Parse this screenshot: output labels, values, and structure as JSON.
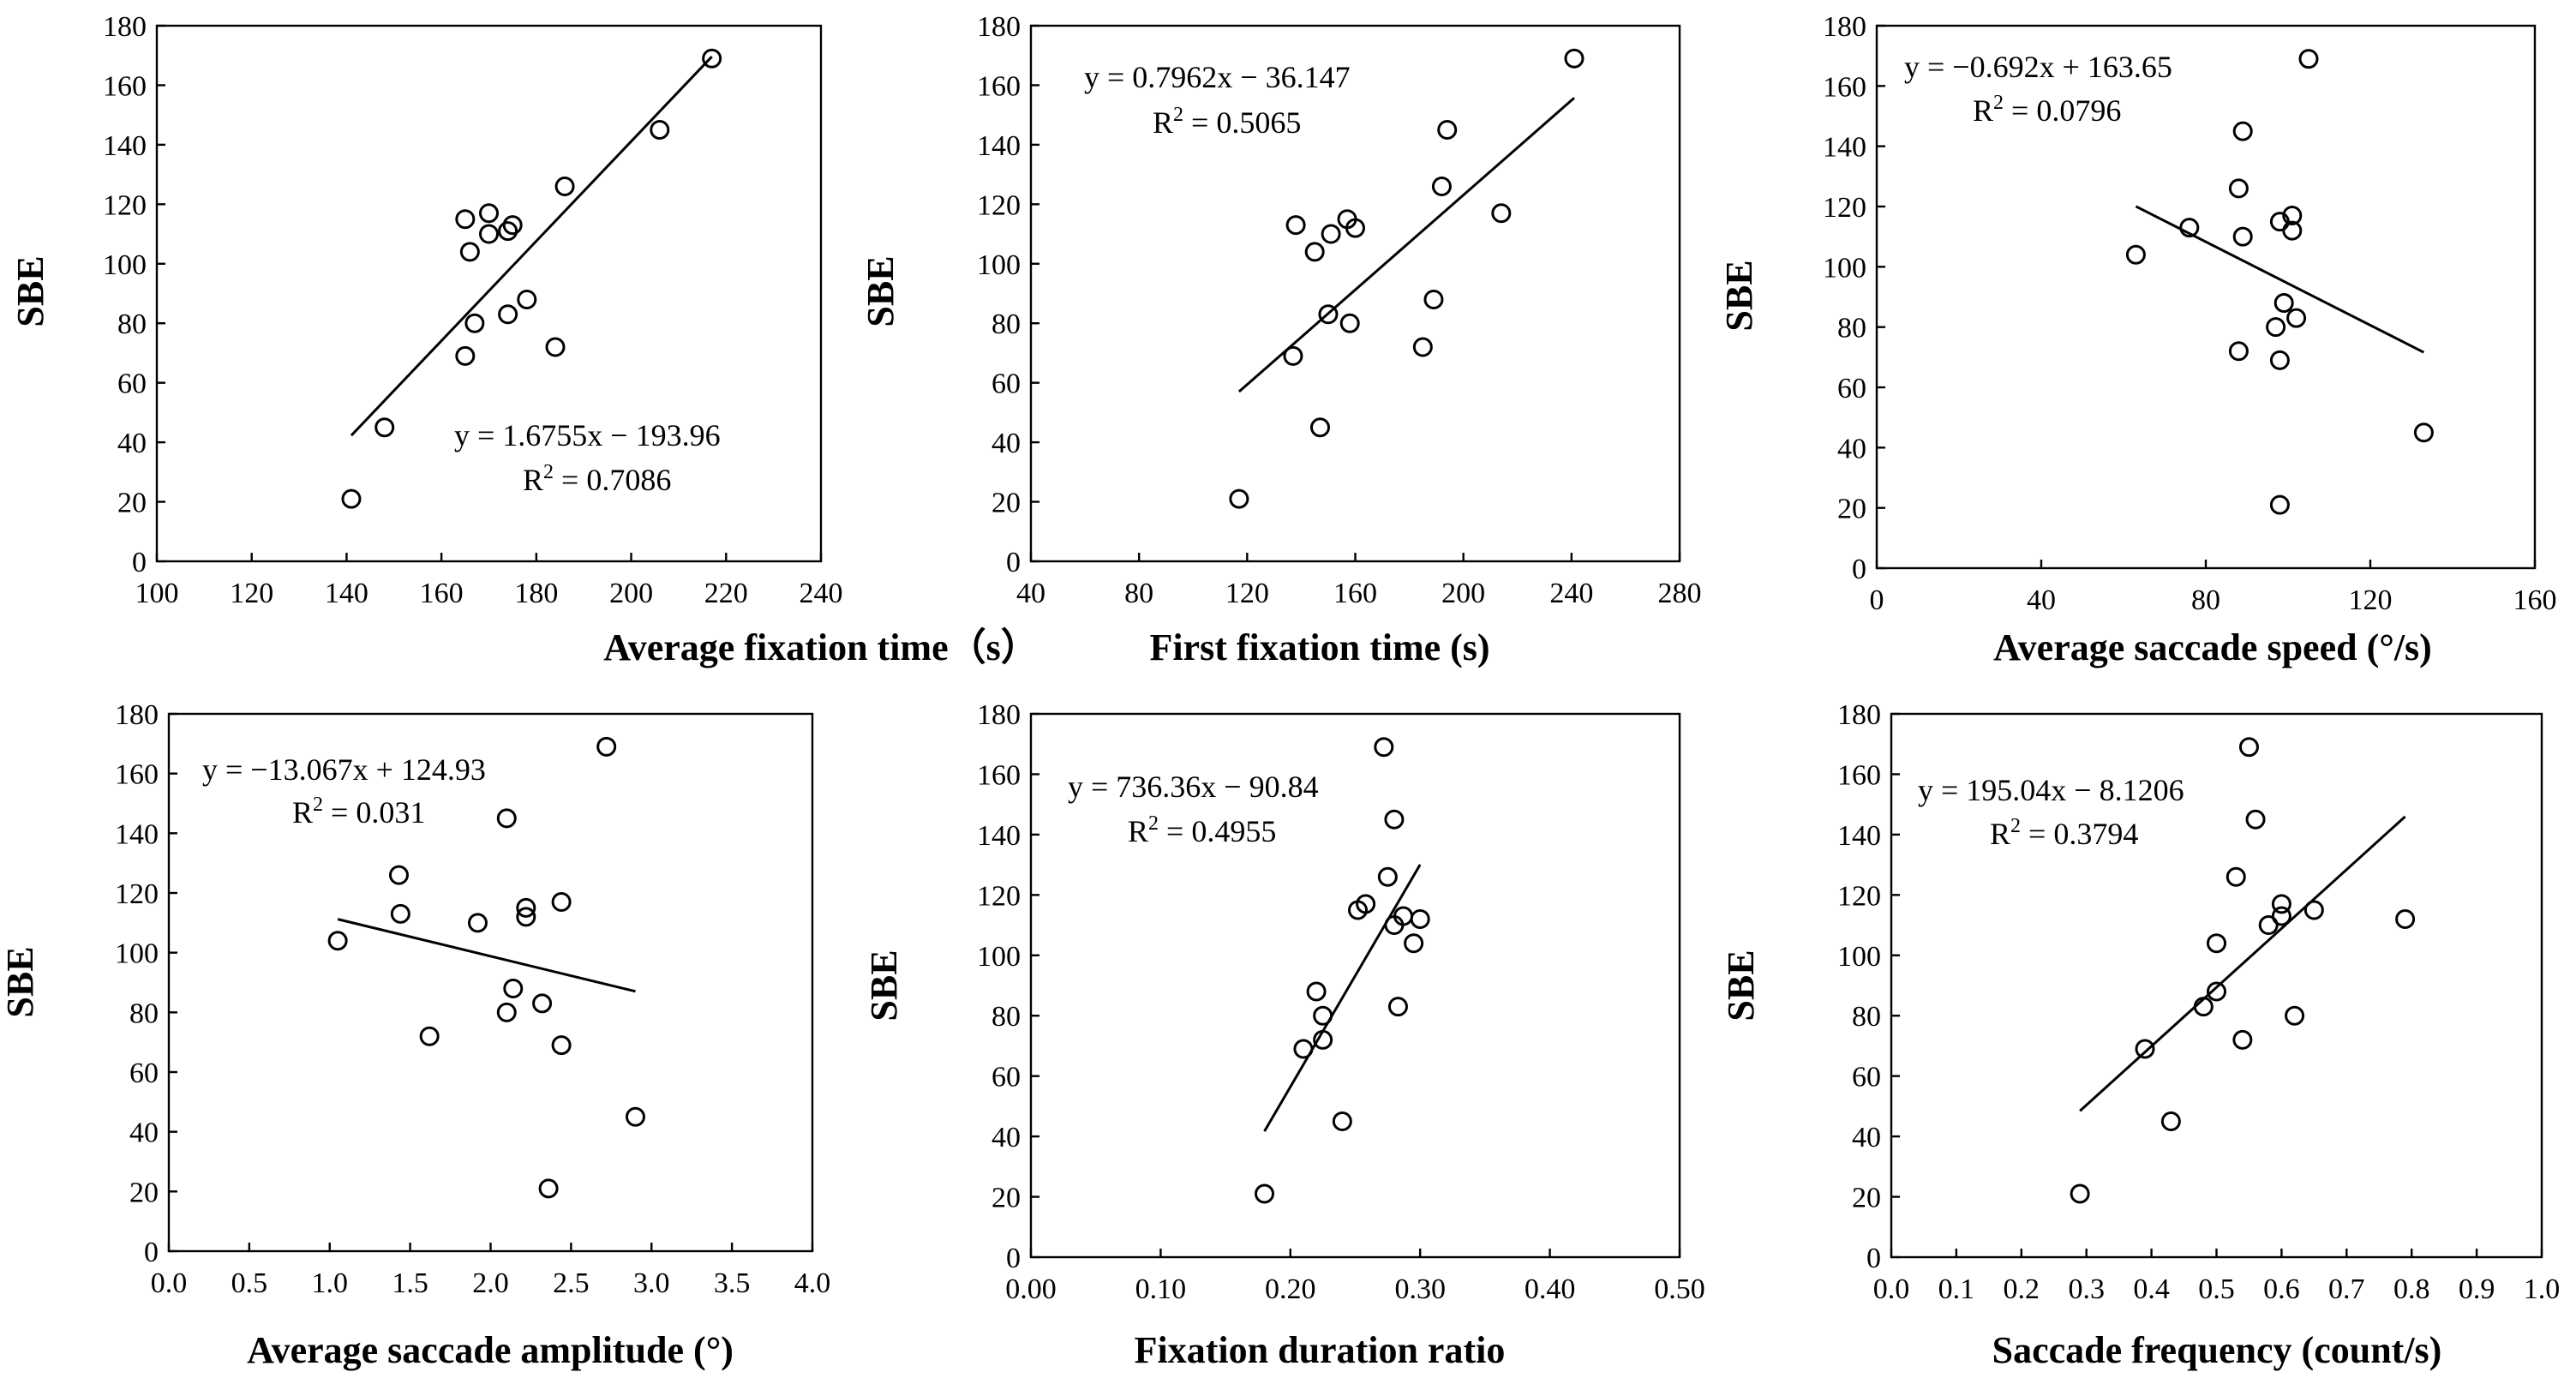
{
  "chart_data": [
    {
      "type": "scatter",
      "xlabel": "Average fixation time（s）",
      "ylabel": "SBE",
      "xlim": [
        100,
        240
      ],
      "ylim": [
        0,
        180
      ],
      "xticks": [
        "100",
        "120",
        "140",
        "160",
        "180",
        "200",
        "220",
        "240"
      ],
      "yticks": [
        "0",
        "20",
        "40",
        "60",
        "80",
        "100",
        "120",
        "140",
        "160",
        "180"
      ],
      "points": [
        [
          141,
          21
        ],
        [
          148,
          45
        ],
        [
          165,
          69
        ],
        [
          167,
          80
        ],
        [
          174,
          83
        ],
        [
          178,
          88
        ],
        [
          184,
          72
        ],
        [
          166,
          104
        ],
        [
          165,
          115
        ],
        [
          170,
          110
        ],
        [
          170,
          117
        ],
        [
          174,
          111
        ],
        [
          175,
          113
        ],
        [
          186,
          126
        ],
        [
          206,
          145
        ],
        [
          217,
          169
        ]
      ],
      "trendline": {
        "x": [
          141,
          217
        ],
        "slope": 1.6755,
        "intercept": -193.96
      },
      "equation": "y = 1.6755x − 193.96",
      "r2_label": "R",
      "r2_value": " = 0.7086"
    },
    {
      "type": "scatter",
      "xlabel": "First fixation time (s)",
      "ylabel": "SBE",
      "xlim": [
        40,
        280
      ],
      "ylim": [
        0,
        180
      ],
      "xticks": [
        "40",
        "80",
        "120",
        "160",
        "200",
        "240",
        "280"
      ],
      "yticks": [
        "0",
        "20",
        "40",
        "60",
        "80",
        "100",
        "120",
        "140",
        "160",
        "180"
      ],
      "points": [
        [
          117,
          21
        ],
        [
          147,
          45
        ],
        [
          137,
          69
        ],
        [
          158,
          80
        ],
        [
          150,
          83
        ],
        [
          189,
          88
        ],
        [
          185,
          72
        ],
        [
          145,
          104
        ],
        [
          151,
          110
        ],
        [
          157,
          115
        ],
        [
          138,
          113
        ],
        [
          160,
          112
        ],
        [
          192,
          126
        ],
        [
          194,
          145
        ],
        [
          214,
          117
        ],
        [
          241,
          169
        ]
      ],
      "trendline": {
        "x": [
          117,
          241
        ],
        "slope": 0.7962,
        "intercept": -36.147
      },
      "equation": "y = 0.7962x − 36.147",
      "r2_label": "R",
      "r2_value": " = 0.5065"
    },
    {
      "type": "scatter",
      "xlabel": "Average saccade speed (°/s)",
      "ylabel": "SBE",
      "xlim": [
        0,
        160
      ],
      "ylim": [
        0,
        180
      ],
      "xticks": [
        "0",
        "40",
        "80",
        "120",
        "160"
      ],
      "yticks": [
        "0",
        "20",
        "40",
        "60",
        "80",
        "100",
        "120",
        "140",
        "160",
        "180"
      ],
      "points": [
        [
          63,
          104
        ],
        [
          76,
          113
        ],
        [
          89,
          145
        ],
        [
          88,
          126
        ],
        [
          89,
          110
        ],
        [
          88,
          72
        ],
        [
          97,
          80
        ],
        [
          98,
          21
        ],
        [
          98,
          69
        ],
        [
          99,
          88
        ],
        [
          98,
          115
        ],
        [
          102,
          83
        ],
        [
          101,
          117
        ],
        [
          101,
          112
        ],
        [
          105,
          169
        ],
        [
          133,
          45
        ]
      ],
      "trendline": {
        "x": [
          63,
          133
        ],
        "slope": -0.692,
        "intercept": 163.65
      },
      "equation": "y = −0.692x + 163.65",
      "r2_label": "R",
      "r2_value": " = 0.0796"
    },
    {
      "type": "scatter",
      "xlabel": "Average saccade amplitude (°)",
      "ylabel": "SBE",
      "xlim": [
        0,
        4.0
      ],
      "ylim": [
        0,
        180
      ],
      "xticks": [
        "0.0",
        "0.5",
        "1.0",
        "1.5",
        "2.0",
        "2.5",
        "3.0",
        "3.5",
        "4.0"
      ],
      "yticks": [
        "0",
        "20",
        "40",
        "60",
        "80",
        "100",
        "120",
        "140",
        "160",
        "180"
      ],
      "points": [
        [
          1.05,
          104
        ],
        [
          1.43,
          126
        ],
        [
          1.44,
          113
        ],
        [
          1.62,
          72
        ],
        [
          1.92,
          110
        ],
        [
          2.1,
          145
        ],
        [
          2.1,
          80
        ],
        [
          2.14,
          88
        ],
        [
          2.22,
          115
        ],
        [
          2.22,
          112
        ],
        [
          2.32,
          83
        ],
        [
          2.36,
          21
        ],
        [
          2.44,
          69
        ],
        [
          2.44,
          117
        ],
        [
          2.72,
          169
        ],
        [
          2.9,
          45
        ]
      ],
      "trendline": {
        "x": [
          1.05,
          2.9
        ],
        "slope": -13.067,
        "intercept": 124.93
      },
      "equation": "y = −13.067x + 124.93",
      "r2_label": "R",
      "r2_value": " = 0.031"
    },
    {
      "type": "scatter",
      "xlabel": "Fixation duration ratio",
      "ylabel": "SBE",
      "xlim": [
        0,
        0.5
      ],
      "ylim": [
        0,
        180
      ],
      "xticks": [
        "0.00",
        "0.10",
        "0.20",
        "0.30",
        "0.40",
        "0.50"
      ],
      "yticks": [
        "0",
        "20",
        "40",
        "60",
        "80",
        "100",
        "120",
        "140",
        "160",
        "180"
      ],
      "points": [
        [
          0.18,
          21
        ],
        [
          0.24,
          45
        ],
        [
          0.21,
          69
        ],
        [
          0.225,
          72
        ],
        [
          0.225,
          80
        ],
        [
          0.22,
          88
        ],
        [
          0.283,
          83
        ],
        [
          0.252,
          115
        ],
        [
          0.258,
          117
        ],
        [
          0.28,
          110
        ],
        [
          0.287,
          113
        ],
        [
          0.3,
          112
        ],
        [
          0.295,
          104
        ],
        [
          0.275,
          126
        ],
        [
          0.28,
          145
        ],
        [
          0.272,
          169
        ]
      ],
      "trendline": {
        "x": [
          0.18,
          0.3
        ],
        "slope": 736.36,
        "intercept": -90.84
      },
      "equation": "y = 736.36x − 90.84",
      "r2_label": "R",
      "r2_value": " = 0.4955"
    },
    {
      "type": "scatter",
      "xlabel": "Saccade frequency (count/s)",
      "ylabel": "SBE",
      "xlim": [
        0,
        1.0
      ],
      "ylim": [
        0,
        180
      ],
      "xticks": [
        "0.0",
        "0.1",
        "0.2",
        "0.3",
        "0.4",
        "0.5",
        "0.6",
        "0.7",
        "0.8",
        "0.9",
        "1.0"
      ],
      "yticks": [
        "0",
        "20",
        "40",
        "60",
        "80",
        "100",
        "120",
        "140",
        "160",
        "180"
      ],
      "points": [
        [
          0.29,
          21
        ],
        [
          0.43,
          45
        ],
        [
          0.39,
          69
        ],
        [
          0.54,
          72
        ],
        [
          0.48,
          83
        ],
        [
          0.5,
          88
        ],
        [
          0.62,
          80
        ],
        [
          0.5,
          104
        ],
        [
          0.58,
          110
        ],
        [
          0.6,
          113
        ],
        [
          0.6,
          117
        ],
        [
          0.53,
          126
        ],
        [
          0.56,
          145
        ],
        [
          0.55,
          169
        ],
        [
          0.65,
          115
        ],
        [
          0.79,
          112
        ]
      ],
      "trendline": {
        "x": [
          0.29,
          0.79
        ],
        "slope": 195.04,
        "intercept": -8.1206
      },
      "equation": "y = 195.04x − 8.1206",
      "r2_label": "R",
      "r2_value": " = 0.3794"
    }
  ]
}
